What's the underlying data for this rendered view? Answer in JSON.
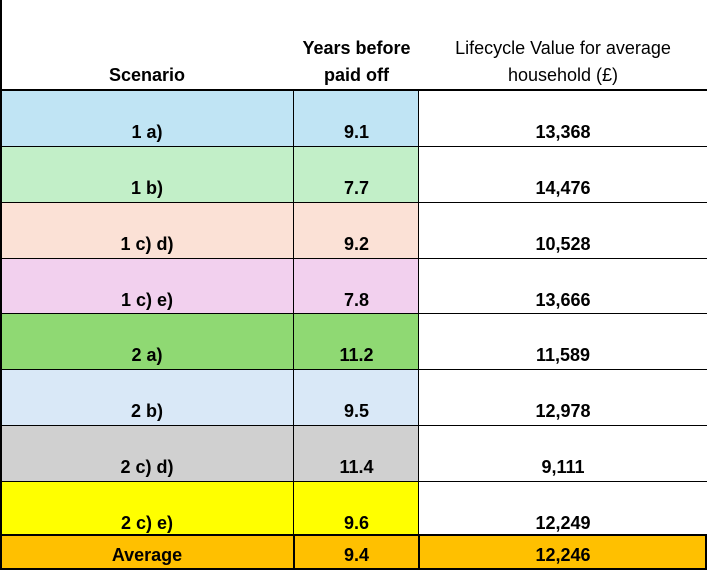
{
  "header": {
    "scenario": "Scenario",
    "years": "Years before paid off",
    "value": "Lifecycle Value for average household (£)"
  },
  "rows": [
    {
      "scenario": "1 a)",
      "years": "9.1",
      "value": "13,368",
      "color": "#c0e4f4"
    },
    {
      "scenario": "1 b)",
      "years": "7.7",
      "value": "14,476",
      "color": "#c2efc8"
    },
    {
      "scenario": "1 c) d)",
      "years": "9.2",
      "value": "10,528",
      "color": "#fbe1d6"
    },
    {
      "scenario": "1 c) e)",
      "years": "7.8",
      "value": "13,666",
      "color": "#f2d0ee"
    },
    {
      "scenario": "2 a)",
      "years": "11.2",
      "value": "11,589",
      "color": "#8fd973"
    },
    {
      "scenario": "2 b)",
      "years": "9.5",
      "value": "12,978",
      "color": "#d9e8f7"
    },
    {
      "scenario": "2 c) d)",
      "years": "11.4",
      "value": "9,111",
      "color": "#d0d0d0"
    },
    {
      "scenario": "2 c) e)",
      "years": "9.6",
      "value": "12,249",
      "color": "#ffff00"
    }
  ],
  "average": {
    "scenario": "Average",
    "years": "9.4",
    "value": "12,246",
    "color": "#ffc000"
  }
}
